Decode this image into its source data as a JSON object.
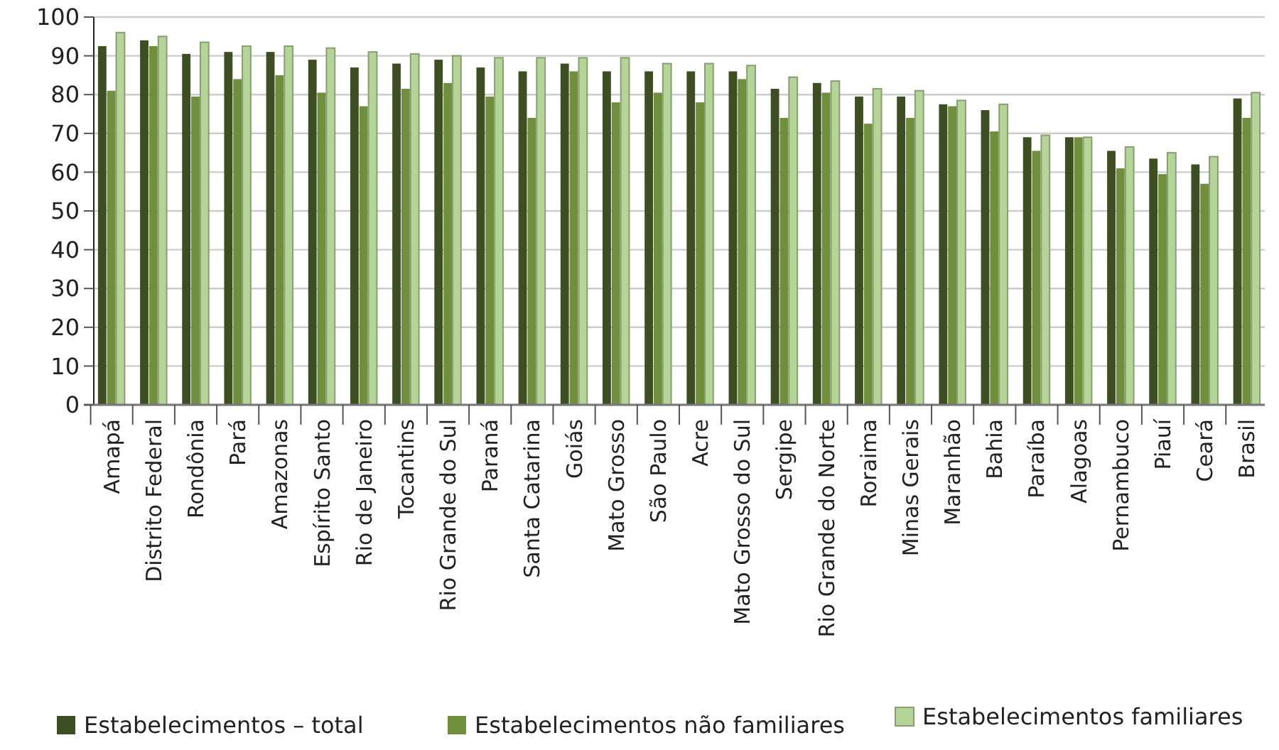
{
  "chart_data": {
    "type": "bar",
    "categories": [
      "Amapá",
      "Distrito Federal",
      "Rondônia",
      "Pará",
      "Amazonas",
      "Espírito Santo",
      "Rio de Janeiro",
      "Tocantins",
      "Rio Grande do Sul",
      "Paraná",
      "Santa Catarina",
      "Goiás",
      "Mato Grosso",
      "São Paulo",
      "Acre",
      "Mato Grosso do Sul",
      "Sergipe",
      "Rio Grande do Norte",
      "Roraima",
      "Minas Gerais",
      "Maranhão",
      "Bahia",
      "Paraíba",
      "Alagoas",
      "Pernambuco",
      "Piauí",
      "Ceará",
      "Brasil"
    ],
    "series": [
      {
        "name": "Estabelecimentos – total",
        "color": "#3e4e23",
        "values": [
          92.5,
          94,
          90.5,
          91,
          91,
          89,
          87,
          88,
          89,
          87,
          86,
          88,
          86,
          86,
          86,
          86,
          81.5,
          83,
          79.5,
          79.5,
          77.5,
          76,
          69,
          69,
          65.5,
          63.5,
          62,
          79
        ]
      },
      {
        "name": "Estabelecimentos não familiares",
        "color": "#6f8f3d",
        "values": [
          81,
          92.5,
          79.5,
          84,
          85,
          80.5,
          77,
          81.5,
          83,
          79.5,
          74,
          86,
          78,
          80.5,
          78,
          84,
          74,
          80.5,
          72.5,
          74,
          77,
          70.5,
          65.5,
          69,
          61,
          59.5,
          57,
          74
        ]
      },
      {
        "name": "Estabelecimentos familiares",
        "color": "#b5d498",
        "values": [
          96,
          95,
          93.5,
          92.5,
          92.5,
          92,
          91,
          90.5,
          90,
          89.5,
          89.5,
          89.5,
          89.5,
          88,
          88,
          87.5,
          84.5,
          83.5,
          81.5,
          81,
          78.5,
          77.5,
          69.5,
          69,
          66.5,
          65,
          64,
          80.5
        ]
      }
    ],
    "ylim": [
      0,
      100
    ],
    "yticks": [
      0,
      10,
      20,
      30,
      40,
      50,
      60,
      70,
      80,
      90,
      100
    ],
    "grid": "y",
    "legend": "bottom"
  }
}
